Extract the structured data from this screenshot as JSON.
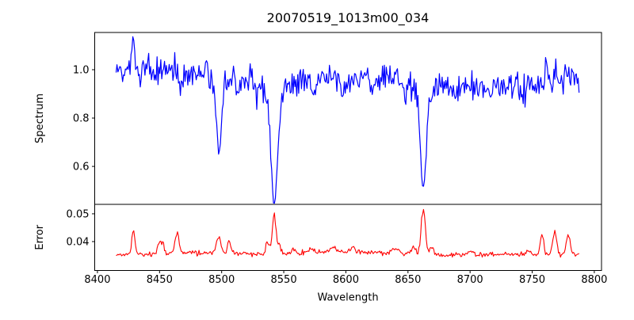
{
  "figure": {
    "title": "20070519_1013m00_034",
    "xlabel": "Wavelength",
    "background_color": "#ffffff",
    "axis_color": "#000000"
  },
  "axes_shared": {
    "xlim": [
      8397.8,
      8805.8
    ],
    "xticks": [
      {
        "value": 8400,
        "label": "8400"
      },
      {
        "value": 8450,
        "label": "8450"
      },
      {
        "value": 8500,
        "label": "8500"
      },
      {
        "value": 8550,
        "label": "8550"
      },
      {
        "value": 8600,
        "label": "8600"
      },
      {
        "value": 8650,
        "label": "8650"
      },
      {
        "value": 8700,
        "label": "8700"
      },
      {
        "value": 8750,
        "label": "8750"
      },
      {
        "value": 8800,
        "label": "8800"
      }
    ]
  },
  "chart_data": [
    {
      "type": "line",
      "name": "spectrum",
      "ylabel": "Spectrum",
      "color": "#0000ff",
      "line_width": 1.2,
      "ylim": [
        0.443,
        1.154
      ],
      "yticks": [
        {
          "value": 1.0,
          "label": "1.0"
        },
        {
          "value": 0.8,
          "label": "0.8"
        },
        {
          "value": 0.6,
          "label": "0.6"
        }
      ],
      "x_start": 8415,
      "x_end": 8788,
      "x_step": 0.75,
      "noise_seed": 9,
      "continuum": 0.975,
      "continuum_slope": -6e-05,
      "wobble": [
        {
          "amp": 0.012,
          "freq": 0.035,
          "phase": 0
        },
        {
          "amp": 0.008,
          "freq": 0.013,
          "phase": 1
        }
      ],
      "noise_sigma": 0.032,
      "absorption_lines": [
        {
          "center": 8498.0,
          "depth": 0.28,
          "sigma": 2.0
        },
        {
          "center": 8498.0,
          "depth": 0.03,
          "sigma": 5.0
        },
        {
          "center": 8542.3,
          "depth": 0.46,
          "sigma": 2.6
        },
        {
          "center": 8542.3,
          "depth": 0.05,
          "sigma": 8.0
        },
        {
          "center": 8662.4,
          "depth": 0.4,
          "sigma": 2.4
        },
        {
          "center": 8662.4,
          "depth": 0.045,
          "sigma": 7.0
        },
        {
          "center": 8468,
          "depth": 0.05,
          "sigma": 1.8
        },
        {
          "center": 8514,
          "depth": 0.045,
          "sigma": 1.8
        },
        {
          "center": 8528,
          "depth": 0.035,
          "sigma": 1.8
        },
        {
          "center": 8575,
          "depth": 0.05,
          "sigma": 2.0
        },
        {
          "center": 8598,
          "depth": 0.06,
          "sigma": 2.0
        },
        {
          "center": 8621,
          "depth": 0.04,
          "sigma": 2.0
        },
        {
          "center": 8648,
          "depth": 0.045,
          "sigma": 2.0
        },
        {
          "center": 8688,
          "depth": 0.045,
          "sigma": 2.0
        },
        {
          "center": 8713,
          "depth": 0.04,
          "sigma": 2.0
        },
        {
          "center": 8742,
          "depth": 0.035,
          "sigma": 2.0
        }
      ],
      "emission_spikes": [
        {
          "center": 8429,
          "height": 0.12,
          "sigma": 1.0
        },
        {
          "center": 8760,
          "height": 0.05,
          "sigma": 1.0
        },
        {
          "center": 8768,
          "height": 0.05,
          "sigma": 1.0
        }
      ],
      "key_features": {
        "continuum_level": 0.975,
        "absorption_minima": [
          {
            "wavelength": 8498,
            "flux": 0.66
          },
          {
            "wavelength": 8542,
            "flux": 0.47
          },
          {
            "wavelength": 8662,
            "flux": 0.54
          }
        ]
      }
    },
    {
      "type": "line",
      "name": "error",
      "ylabel": "Error",
      "color": "#ff0000",
      "line_width": 1.1,
      "ylim": [
        0.0296,
        0.0534
      ],
      "yticks": [
        {
          "value": 0.05,
          "label": "0.05"
        },
        {
          "value": 0.04,
          "label": "0.04"
        }
      ],
      "x_start": 8415,
      "x_end": 8788,
      "x_step": 0.75,
      "noise_seed": 17,
      "baseline": 0.0352,
      "noise_sigma": 0.00045,
      "peaks": [
        {
          "center": 8429,
          "height": 0.009,
          "sigma": 1.2
        },
        {
          "center": 8450,
          "height": 0.0045,
          "sigma": 1.6
        },
        {
          "center": 8453,
          "height": 0.003,
          "sigma": 1.0
        },
        {
          "center": 8464,
          "height": 0.0075,
          "sigma": 1.6
        },
        {
          "center": 8497.5,
          "height": 0.0055,
          "sigma": 1.8
        },
        {
          "center": 8506,
          "height": 0.0045,
          "sigma": 1.2
        },
        {
          "center": 8537,
          "height": 0.004,
          "sigma": 1.3
        },
        {
          "center": 8542.2,
          "height": 0.0135,
          "sigma": 1.4
        },
        {
          "center": 8546,
          "height": 0.0035,
          "sigma": 1.5
        },
        {
          "center": 8558,
          "height": 0.0018,
          "sigma": 1.5
        },
        {
          "center": 8572,
          "height": 0.0018,
          "sigma": 2.0
        },
        {
          "center": 8590,
          "height": 0.002,
          "sigma": 2.0
        },
        {
          "center": 8605,
          "height": 0.0015,
          "sigma": 2.0
        },
        {
          "center": 8640,
          "height": 0.0018,
          "sigma": 2.5
        },
        {
          "center": 8654,
          "height": 0.0032,
          "sigma": 1.5
        },
        {
          "center": 8662.3,
          "height": 0.0163,
          "sigma": 1.7
        },
        {
          "center": 8669,
          "height": 0.0028,
          "sigma": 1.5
        },
        {
          "center": 8700,
          "height": 0.0012,
          "sigma": 2.0
        },
        {
          "center": 8747,
          "height": 0.002,
          "sigma": 1.5
        },
        {
          "center": 8758,
          "height": 0.0078,
          "sigma": 1.4
        },
        {
          "center": 8768,
          "height": 0.0085,
          "sigma": 1.6
        },
        {
          "center": 8779,
          "height": 0.0075,
          "sigma": 1.5
        },
        {
          "center": 8598,
          "height": 0.0012,
          "sigma": 30.0
        },
        {
          "center": 8480,
          "height": 0.0006,
          "sigma": 40.0
        }
      ],
      "key_features": {
        "baseline_value": 0.035,
        "max_value": 0.052,
        "max_at_wavelength": 8662
      }
    }
  ]
}
